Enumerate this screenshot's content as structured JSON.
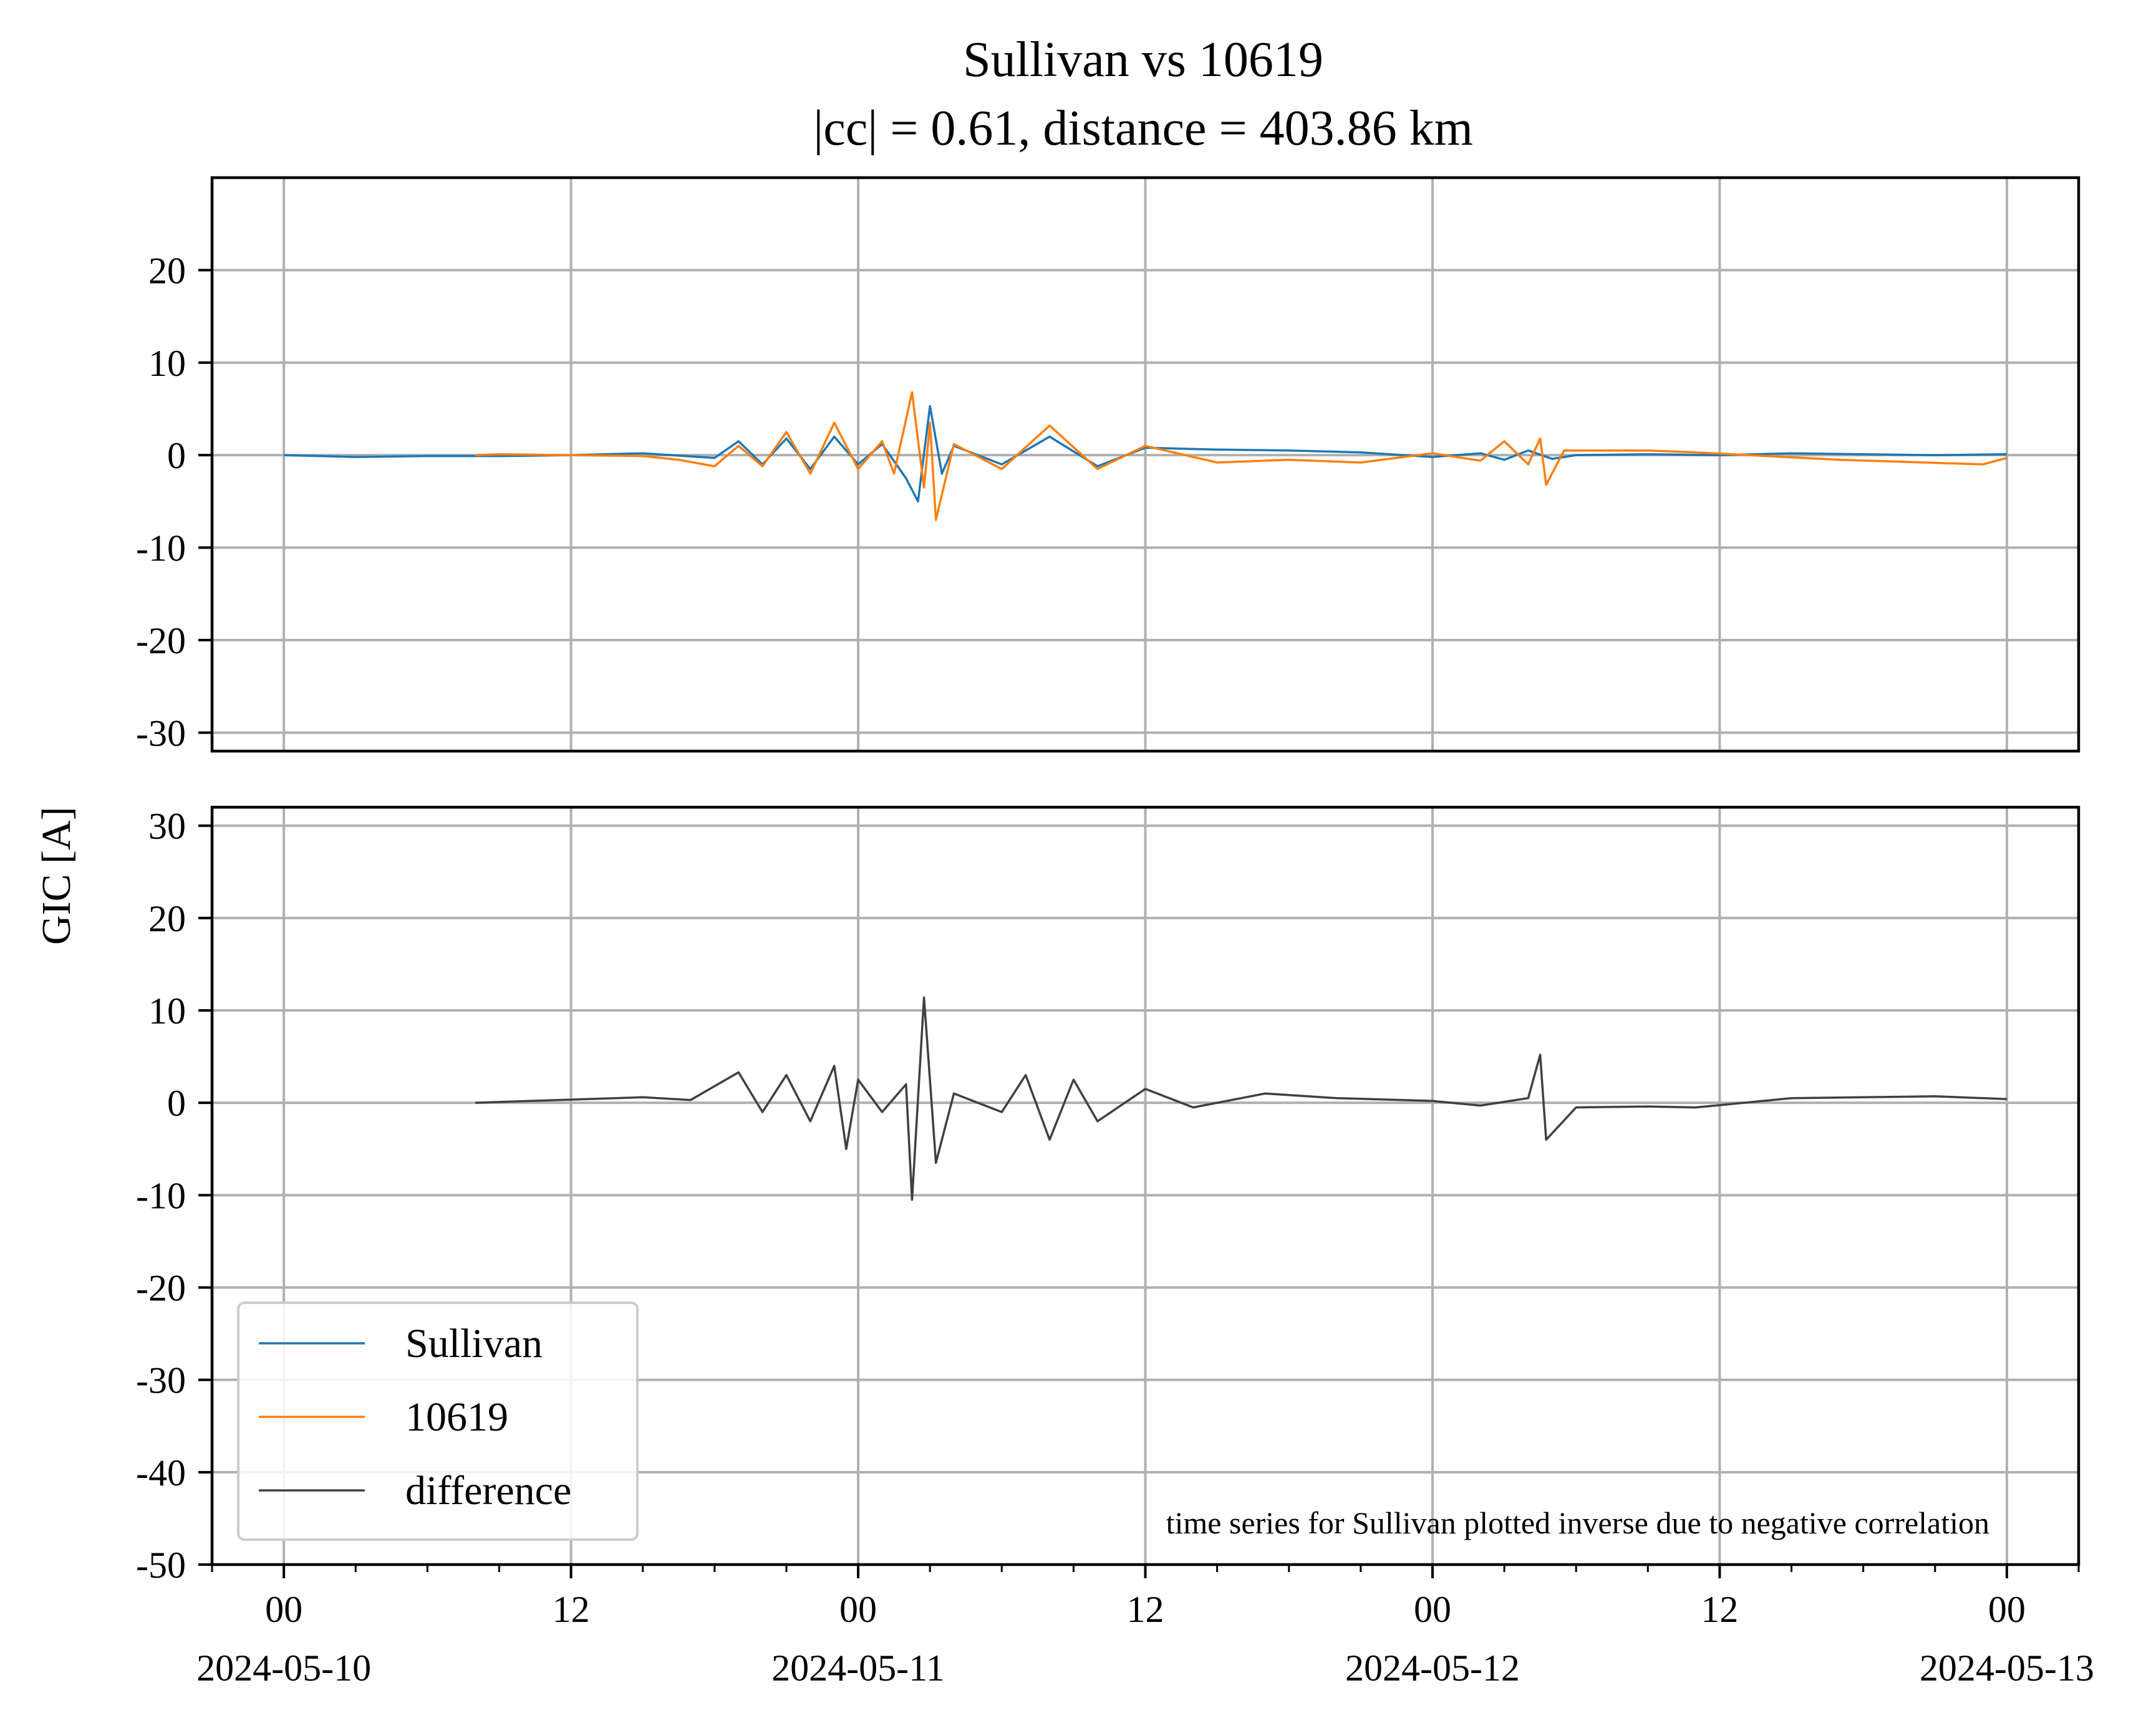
{
  "chart_data": {
    "type": "line",
    "title": "Sullivan vs 10619",
    "subtitle": "|cc| = 0.61, distance = 403.86 km",
    "ylabel": "GIC [A]",
    "x_range": [
      "2024-05-09T21:00",
      "2024-05-13T03:00"
    ],
    "x_major_ticks": [
      {
        "time": "2024-05-10T00:00",
        "hour_label": "00",
        "date_label": "2024-05-10"
      },
      {
        "time": "2024-05-10T12:00",
        "hour_label": "12",
        "date_label": ""
      },
      {
        "time": "2024-05-11T00:00",
        "hour_label": "00",
        "date_label": "2024-05-11"
      },
      {
        "time": "2024-05-11T12:00",
        "hour_label": "12",
        "date_label": ""
      },
      {
        "time": "2024-05-12T00:00",
        "hour_label": "00",
        "date_label": "2024-05-12"
      },
      {
        "time": "2024-05-12T12:00",
        "hour_label": "12",
        "date_label": ""
      },
      {
        "time": "2024-05-13T00:00",
        "hour_label": "00",
        "date_label": "2024-05-13"
      }
    ],
    "grid": true,
    "panels": [
      {
        "ylim": [
          -32,
          30
        ],
        "yticks": [
          -30,
          -20,
          -10,
          0,
          10,
          20
        ],
        "series": [
          {
            "name": "Sullivan",
            "color": "#1f77b4",
            "points": [
              [
                "2024-05-10T00:00",
                0
              ],
              [
                "2024-05-10T03:00",
                -0.2
              ],
              [
                "2024-05-10T06:00",
                -0.1
              ],
              [
                "2024-05-10T09:00",
                -0.1
              ],
              [
                "2024-05-10T12:00",
                0
              ],
              [
                "2024-05-10T15:00",
                0.2
              ],
              [
                "2024-05-10T18:00",
                -0.3
              ],
              [
                "2024-05-10T19:00",
                1.5
              ],
              [
                "2024-05-10T20:00",
                -1.0
              ],
              [
                "2024-05-10T21:00",
                1.8
              ],
              [
                "2024-05-10T22:00",
                -1.5
              ],
              [
                "2024-05-10T23:00",
                2.0
              ],
              [
                "2024-05-11T00:00",
                -1.0
              ],
              [
                "2024-05-11T01:00",
                1.2
              ],
              [
                "2024-05-11T02:00",
                -2.5
              ],
              [
                "2024-05-11T02:30",
                -5.0
              ],
              [
                "2024-05-11T03:00",
                5.3
              ],
              [
                "2024-05-11T03:30",
                -2.0
              ],
              [
                "2024-05-11T04:00",
                1.0
              ],
              [
                "2024-05-11T06:00",
                -1.0
              ],
              [
                "2024-05-11T08:00",
                2.0
              ],
              [
                "2024-05-11T10:00",
                -1.2
              ],
              [
                "2024-05-11T12:00",
                0.8
              ],
              [
                "2024-05-11T15:00",
                0.6
              ],
              [
                "2024-05-11T18:00",
                0.5
              ],
              [
                "2024-05-11T21:00",
                0.3
              ],
              [
                "2024-05-12T00:00",
                -0.2
              ],
              [
                "2024-05-12T02:00",
                0.2
              ],
              [
                "2024-05-12T03:00",
                -0.5
              ],
              [
                "2024-05-12T04:00",
                0.5
              ],
              [
                "2024-05-12T05:00",
                -0.4
              ],
              [
                "2024-05-12T06:00",
                0.0
              ],
              [
                "2024-05-12T09:00",
                0.1
              ],
              [
                "2024-05-12T12:00",
                0.0
              ],
              [
                "2024-05-12T15:00",
                0.2
              ],
              [
                "2024-05-12T18:00",
                0.1
              ],
              [
                "2024-05-12T21:00",
                0.0
              ],
              [
                "2024-05-13T00:00",
                0.1
              ]
            ]
          },
          {
            "name": "10619",
            "color": "#ff7f0e",
            "points": [
              [
                "2024-05-10T08:00",
                0
              ],
              [
                "2024-05-10T09:00",
                0.1
              ],
              [
                "2024-05-10T15:00",
                -0.1
              ],
              [
                "2024-05-10T16:30",
                -0.5
              ],
              [
                "2024-05-10T18:00",
                -1.2
              ],
              [
                "2024-05-10T19:00",
                1.0
              ],
              [
                "2024-05-10T20:00",
                -1.2
              ],
              [
                "2024-05-10T21:00",
                2.5
              ],
              [
                "2024-05-10T22:00",
                -2.0
              ],
              [
                "2024-05-10T23:00",
                3.5
              ],
              [
                "2024-05-11T00:00",
                -1.5
              ],
              [
                "2024-05-11T01:00",
                1.5
              ],
              [
                "2024-05-11T01:30",
                -2.0
              ],
              [
                "2024-05-11T02:15",
                6.8
              ],
              [
                "2024-05-11T02:45",
                -3.5
              ],
              [
                "2024-05-11T03:00",
                3.5
              ],
              [
                "2024-05-11T03:15",
                -7.0
              ],
              [
                "2024-05-11T04:00",
                1.2
              ],
              [
                "2024-05-11T06:00",
                -1.5
              ],
              [
                "2024-05-11T08:00",
                3.2
              ],
              [
                "2024-05-11T10:00",
                -1.5
              ],
              [
                "2024-05-11T12:00",
                1.0
              ],
              [
                "2024-05-11T15:00",
                -0.8
              ],
              [
                "2024-05-11T18:00",
                -0.5
              ],
              [
                "2024-05-11T21:00",
                -0.8
              ],
              [
                "2024-05-12T00:00",
                0.2
              ],
              [
                "2024-05-12T02:00",
                -0.6
              ],
              [
                "2024-05-12T03:00",
                1.5
              ],
              [
                "2024-05-12T04:00",
                -1.0
              ],
              [
                "2024-05-12T04:30",
                1.8
              ],
              [
                "2024-05-12T04:45",
                -3.2
              ],
              [
                "2024-05-12T05:30",
                0.5
              ],
              [
                "2024-05-12T09:00",
                0.5
              ],
              [
                "2024-05-12T11:00",
                0.3
              ],
              [
                "2024-05-12T17:00",
                -0.5
              ],
              [
                "2024-05-12T23:00",
                -1.0
              ],
              [
                "2024-05-13T00:00",
                -0.3
              ]
            ]
          }
        ]
      },
      {
        "ylim": [
          -50,
          32
        ],
        "yticks": [
          -50,
          -40,
          -30,
          -20,
          -10,
          0,
          10,
          20,
          30
        ],
        "series": [
          {
            "name": "difference",
            "color": "#404040",
            "points": [
              [
                "2024-05-10T08:00",
                0
              ],
              [
                "2024-05-10T15:00",
                0.6
              ],
              [
                "2024-05-10T17:00",
                0.3
              ],
              [
                "2024-05-10T19:00",
                3.3
              ],
              [
                "2024-05-10T20:00",
                -1.0
              ],
              [
                "2024-05-10T21:00",
                3.0
              ],
              [
                "2024-05-10T22:00",
                -2.0
              ],
              [
                "2024-05-10T23:00",
                4.0
              ],
              [
                "2024-05-10T23:30",
                -5.0
              ],
              [
                "2024-05-11T00:00",
                2.5
              ],
              [
                "2024-05-11T01:00",
                -1.0
              ],
              [
                "2024-05-11T02:00",
                2.0
              ],
              [
                "2024-05-11T02:15",
                -10.5
              ],
              [
                "2024-05-11T02:45",
                11.4
              ],
              [
                "2024-05-11T03:15",
                -6.5
              ],
              [
                "2024-05-11T04:00",
                1.0
              ],
              [
                "2024-05-11T06:00",
                -1.0
              ],
              [
                "2024-05-11T07:00",
                3.0
              ],
              [
                "2024-05-11T08:00",
                -4.0
              ],
              [
                "2024-05-11T09:00",
                2.5
              ],
              [
                "2024-05-11T10:00",
                -2.0
              ],
              [
                "2024-05-11T12:00",
                1.5
              ],
              [
                "2024-05-11T14:00",
                -0.5
              ],
              [
                "2024-05-11T17:00",
                1.0
              ],
              [
                "2024-05-11T20:00",
                0.5
              ],
              [
                "2024-05-12T00:00",
                0.2
              ],
              [
                "2024-05-12T02:00",
                -0.3
              ],
              [
                "2024-05-12T04:00",
                0.5
              ],
              [
                "2024-05-12T04:30",
                5.2
              ],
              [
                "2024-05-12T04:45",
                -4.0
              ],
              [
                "2024-05-12T06:00",
                -0.5
              ],
              [
                "2024-05-12T09:00",
                -0.4
              ],
              [
                "2024-05-12T11:00",
                -0.5
              ],
              [
                "2024-05-12T15:00",
                0.5
              ],
              [
                "2024-05-12T18:00",
                0.6
              ],
              [
                "2024-05-12T21:00",
                0.7
              ],
              [
                "2024-05-13T00:00",
                0.4
              ]
            ]
          }
        ]
      }
    ],
    "legend": {
      "placement": "lower left",
      "entries": [
        {
          "label": "Sullivan",
          "color": "#1f77b4"
        },
        {
          "label": "10619",
          "color": "#ff7f0e"
        },
        {
          "label": "difference",
          "color": "#404040"
        }
      ]
    },
    "annotation": "time series for Sullivan plotted inverse due to negative correlation"
  }
}
